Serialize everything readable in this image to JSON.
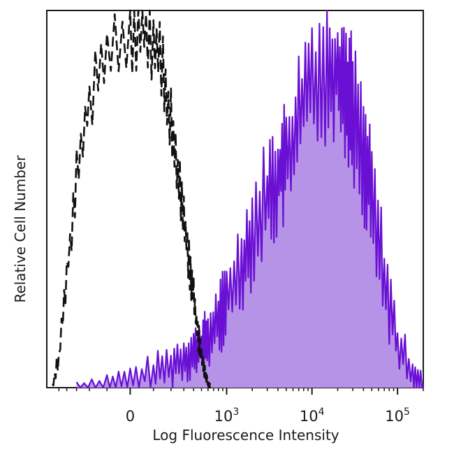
{
  "chart_data": {
    "type": "area",
    "xlabel": "Log Fluorescence Intensity",
    "ylabel": "Relative Cell Number",
    "xscale": "biexponential",
    "xlim": [
      -700,
      200000
    ],
    "ylim": [
      0,
      100
    ],
    "x_ticks": [
      {
        "value": 0,
        "base": "0",
        "exp": ""
      },
      {
        "value": 1000,
        "base": "10",
        "exp": "3"
      },
      {
        "value": 10000,
        "base": "10",
        "exp": "4"
      },
      {
        "value": 100000,
        "base": "10",
        "exp": "5"
      }
    ],
    "grid": false,
    "legend": "none",
    "series": [
      {
        "style": "dashed",
        "color": "#111111",
        "fill": "none",
        "x": [
          -600,
          -500,
          -400,
          -300,
          -200,
          -100,
          0,
          50,
          100,
          150,
          200,
          250,
          300,
          350,
          400,
          450,
          500,
          550,
          600,
          650
        ],
        "y": [
          0,
          8,
          30,
          55,
          76,
          88,
          94,
          96,
          92,
          84,
          70,
          57,
          45,
          34,
          24,
          15,
          8,
          4,
          1,
          0
        ]
      },
      {
        "style": "solid",
        "color": "#6a0fd4",
        "fill": "#b693e6",
        "x": [
          -300,
          -100,
          0,
          100,
          200,
          300,
          400,
          500,
          600,
          800,
          1000,
          1500,
          2000,
          3000,
          4000,
          5000,
          7000,
          10000,
          15000,
          20000,
          25000,
          30000,
          40000,
          50000,
          70000,
          100000,
          150000,
          200000
        ],
        "y": [
          0,
          1,
          2,
          4,
          6,
          8,
          9,
          11,
          13,
          18,
          23,
          33,
          41,
          51,
          56,
          60,
          71,
          82,
          85,
          85,
          80,
          74,
          62,
          50,
          30,
          11,
          4,
          1
        ]
      }
    ]
  }
}
